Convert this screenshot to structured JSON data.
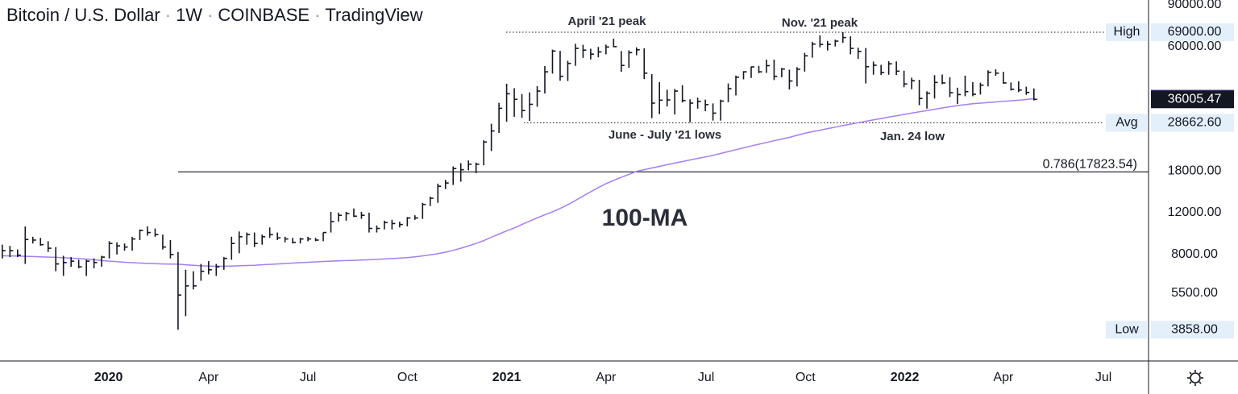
{
  "chart_data": {
    "type": "ohlc",
    "title": [
      "Bitcoin / U.S. Dollar",
      "1W",
      "COINBASE",
      "TradingView"
    ],
    "log_scale": true,
    "ylim": [
      2850,
      94300
    ],
    "yticks": [
      {
        "value": 90000,
        "label": "90000.00"
      },
      {
        "value": 60000,
        "label": "60000.00"
      },
      {
        "value": 18000,
        "label": "18000.00"
      },
      {
        "value": 12000,
        "label": "12000.00"
      },
      {
        "value": 8000,
        "label": "8000.00"
      },
      {
        "value": 5500,
        "label": "5500.00"
      }
    ],
    "xlim": [
      -0.3,
      150
    ],
    "xticks": [
      {
        "value": 13.9,
        "label": "2020"
      },
      {
        "value": 27,
        "label": "Apr"
      },
      {
        "value": 40,
        "label": "Jul"
      },
      {
        "value": 53,
        "label": "Oct"
      },
      {
        "value": 66,
        "label": "2021"
      },
      {
        "value": 79,
        "label": "Apr"
      },
      {
        "value": 92.1,
        "label": "Jul"
      },
      {
        "value": 105.1,
        "label": "Oct"
      },
      {
        "value": 118.1,
        "label": "2022"
      },
      {
        "value": 131,
        "label": "Apr"
      },
      {
        "value": 144.1,
        "label": "Jul"
      }
    ],
    "color": "#131722",
    "high": [
      8800,
      8700,
      8400,
      10500,
      9500,
      9400,
      9100,
      8600,
      7900,
      7800,
      7600,
      7600,
      7700,
      7900,
      9100,
      9000,
      8900,
      9500,
      10200,
      10500,
      10300,
      9700,
      9200,
      8200,
      6900,
      6800,
      7300,
      7500,
      7300,
      7800,
      9500,
      10000,
      9900,
      9900,
      9700,
      10400,
      9900,
      9500,
      9400,
      9400,
      9500,
      9400,
      9900,
      12100,
      12000,
      12100,
      12500,
      12100,
      12000,
      10600,
      11100,
      11200,
      11000,
      11500,
      11700,
      13200,
      14000,
      15900,
      16500,
      18800,
      19400,
      19900,
      19500,
      24200,
      28400,
      34800,
      41900,
      40100,
      37900,
      38500,
      40900,
      49700,
      58300,
      57600,
      52300,
      61700,
      61100,
      58800,
      59800,
      61200,
      64800,
      57500,
      57900,
      59600,
      59000,
      46000,
      42500,
      39500,
      39800,
      41300,
      36000,
      36600,
      35900,
      34600,
      35900,
      42000,
      45300,
      47300,
      49500,
      49800,
      52900,
      52900,
      48800,
      48000,
      49200,
      56500,
      62900,
      67000,
      63400,
      64200,
      69000,
      66300,
      59400,
      59200,
      51900,
      50300,
      52100,
      52000,
      47500,
      44400,
      43500,
      38900,
      45500,
      45800,
      44600,
      40300,
      45300,
      42500,
      42300,
      47700,
      48200,
      47000,
      42400,
      42900,
      40700,
      40000
    ],
    "low": [
      7700,
      7800,
      7800,
      7300,
      8900,
      8700,
      8200,
      6800,
      6500,
      7100,
      7000,
      6500,
      7000,
      7100,
      7700,
      8000,
      8300,
      8300,
      9200,
      9600,
      9500,
      8400,
      7700,
      3858,
      4400,
      5700,
      6200,
      6600,
      6500,
      6900,
      7600,
      8100,
      8800,
      8600,
      8800,
      9400,
      9200,
      9000,
      8900,
      8900,
      9100,
      9100,
      9100,
      9900,
      11000,
      11100,
      11500,
      11300,
      9900,
      9900,
      10200,
      10200,
      10400,
      10500,
      11200,
      11300,
      12800,
      13200,
      15100,
      15700,
      16200,
      18100,
      17600,
      19000,
      21800,
      26000,
      29000,
      30400,
      30100,
      29200,
      33500,
      38100,
      46200,
      43100,
      43000,
      49800,
      53800,
      53000,
      54100,
      55700,
      59700,
      47000,
      48800,
      55200,
      43800,
      30000,
      31200,
      33600,
      31100,
      34900,
      28800,
      32900,
      32100,
      29300,
      29300,
      35000,
      37400,
      43700,
      44300,
      46400,
      46500,
      43400,
      44600,
      39600,
      40800,
      47100,
      53900,
      59600,
      57800,
      60100,
      62300,
      55700,
      53300,
      42000,
      45700,
      45600,
      45700,
      45600,
      40500,
      39700,
      34000,
      32900,
      36300,
      41700,
      36800,
      34400,
      37100,
      37100,
      37700,
      40800,
      45200,
      41900,
      39200,
      38600,
      37600,
      35600
    ],
    "close": [
      8300,
      8300,
      7950,
      9250,
      9200,
      8800,
      8500,
      7300,
      7400,
      7500,
      7100,
      7500,
      7400,
      7800,
      8900,
      8700,
      8600,
      9300,
      10100,
      9900,
      9700,
      8600,
      8000,
      5400,
      5900,
      5900,
      6800,
      6900,
      7100,
      7700,
      8900,
      9500,
      9700,
      8900,
      9500,
      9700,
      9400,
      9300,
      9000,
      9300,
      9300,
      9200,
      9900,
      11000,
      11700,
      11900,
      11600,
      11700,
      10300,
      10300,
      10900,
      10800,
      10700,
      11400,
      11400,
      13000,
      13800,
      15500,
      16000,
      18400,
      18200,
      19200,
      19200,
      23800,
      26500,
      33000,
      38000,
      36000,
      32300,
      34300,
      39000,
      47000,
      57500,
      45000,
      51000,
      59000,
      58000,
      55800,
      57000,
      59800,
      60000,
      50000,
      56600,
      58200,
      46400,
      34700,
      35700,
      35800,
      39000,
      35600,
      34700,
      35300,
      34200,
      31500,
      35400,
      39900,
      44600,
      47000,
      49300,
      47000,
      49900,
      45000,
      48300,
      43000,
      48200,
      54900,
      61500,
      61300,
      61300,
      63300,
      65500,
      59000,
      57300,
      49400,
      50100,
      46700,
      50800,
      47300,
      41800,
      43100,
      36300,
      38200,
      42400,
      42200,
      38400,
      37700,
      38800,
      37800,
      41300,
      46800,
      46400,
      42200,
      39700,
      39400,
      38500,
      36005.47
    ],
    "ma_name": "100-MA",
    "ma_color": "#a57ef5",
    "ma": [
      7900,
      7890,
      7880,
      7860,
      7840,
      7820,
      7800,
      7780,
      7750,
      7720,
      7690,
      7650,
      7600,
      7550,
      7500,
      7460,
      7420,
      7390,
      7360,
      7340,
      7320,
      7300,
      7290,
      7280,
      7240,
      7200,
      7170,
      7150,
      7140,
      7140,
      7150,
      7170,
      7190,
      7210,
      7240,
      7270,
      7300,
      7330,
      7360,
      7390,
      7420,
      7450,
      7480,
      7500,
      7520,
      7540,
      7560,
      7580,
      7600,
      7630,
      7660,
      7690,
      7720,
      7760,
      7820,
      7890,
      7970,
      8060,
      8180,
      8330,
      8500,
      8700,
      8900,
      9150,
      9450,
      9750,
      10050,
      10350,
      10700,
      11050,
      11400,
      11750,
      12100,
      12500,
      12950,
      13500,
      14100,
      14700,
      15300,
      15900,
      16400,
      16900,
      17400,
      17900,
      18200,
      18500,
      18800,
      19100,
      19400,
      19700,
      20000,
      20300,
      20600,
      20900,
      21300,
      21700,
      22100,
      22500,
      22900,
      23300,
      23700,
      24100,
      24500,
      24900,
      25400,
      25900,
      26300,
      26700,
      27100,
      27500,
      27900,
      28300,
      28700,
      29100,
      29500,
      29900,
      30300,
      30700,
      31100,
      31500,
      31900,
      32300,
      32700,
      33100,
      33500,
      33900,
      34200,
      34500,
      34700,
      34900,
      35100,
      35300,
      35500,
      35700,
      35950,
      36246.55
    ],
    "tags": [
      {
        "name": "High",
        "value": 69000,
        "label": "69000.00"
      },
      {
        "name": "Avg",
        "value": 28662.6,
        "label": "28662.60"
      },
      {
        "name": "Low",
        "value": 3858,
        "label": "3858.00"
      }
    ],
    "fib": {
      "value": 17823.54,
      "label": "0.786(17823.54)"
    },
    "annotations": [
      "April '21 peak",
      "Nov. '21 peak",
      "June - July '21 lows",
      "Jan. 24 low"
    ]
  }
}
